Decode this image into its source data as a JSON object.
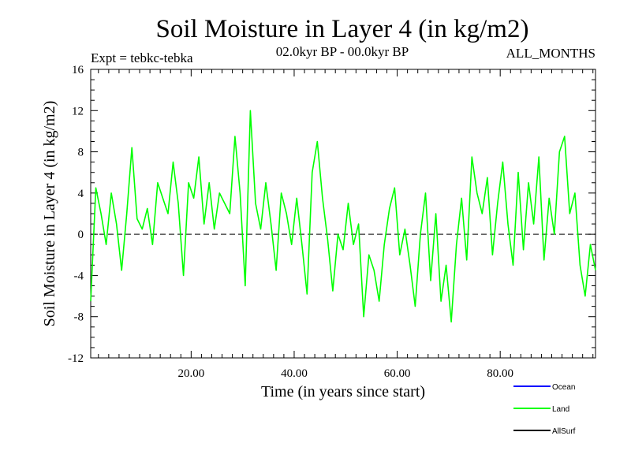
{
  "header": {
    "title": "Soil Moisture in Layer 4 (in kg/m2)",
    "expt": "Expt = tebkc-tebka",
    "period": "02.0kyr BP - 00.0kyr BP",
    "months": "ALL_MONTHS"
  },
  "chart_data": {
    "type": "line",
    "title": "Soil Moisture in Layer 4 (in kg/m2)",
    "xlabel": "Time (in years since start)",
    "ylabel": "Soil Moisture in Layer 4 (in kg/m2)",
    "xlim": [
      0.5,
      98.5
    ],
    "ylim": [
      -12,
      16
    ],
    "x_ticks": [
      20,
      40,
      60,
      80
    ],
    "x_tick_labels": [
      "20.00",
      "40.00",
      "60.00",
      "80.00"
    ],
    "y_ticks": [
      -12,
      -8,
      -4,
      0,
      4,
      8,
      12,
      16
    ],
    "y_tick_labels": [
      "-12",
      "-8",
      "-4",
      "0",
      "4",
      "8",
      "12",
      "16"
    ],
    "zero_line": true,
    "legend": [
      {
        "name": "Ocean",
        "color": "#0000ff"
      },
      {
        "name": "Land",
        "color": "#00ff00"
      },
      {
        "name": "AllSurf",
        "color": "#000000"
      }
    ],
    "series": [
      {
        "name": "Land",
        "color": "#00ff00",
        "x": [
          0.5,
          1.5,
          2.5,
          3.5,
          4.5,
          5.5,
          6.5,
          7.5,
          8.5,
          9.5,
          10.5,
          11.5,
          12.5,
          13.5,
          14.5,
          15.5,
          16.5,
          17.5,
          18.5,
          19.5,
          20.5,
          21.5,
          22.5,
          23.5,
          24.5,
          25.5,
          26.5,
          27.5,
          28.5,
          29.5,
          30.5,
          31.5,
          32.5,
          33.5,
          34.5,
          35.5,
          36.5,
          37.5,
          38.5,
          39.5,
          40.5,
          41.5,
          42.5,
          43.5,
          44.5,
          45.5,
          46.5,
          47.5,
          48.5,
          49.5,
          50.5,
          51.5,
          52.5,
          53.5,
          54.5,
          55.5,
          56.5,
          57.5,
          58.5,
          59.5,
          60.5,
          61.5,
          62.5,
          63.5,
          64.5,
          65.5,
          66.5,
          67.5,
          68.5,
          69.5,
          70.5,
          71.5,
          72.5,
          73.5,
          74.5,
          75.5,
          76.5,
          77.5,
          78.5,
          79.5,
          80.5,
          81.5,
          82.5,
          83.5,
          84.5,
          85.5,
          86.5,
          87.5,
          88.5,
          89.5,
          90.5,
          91.5,
          92.5,
          93.5,
          94.5,
          95.5,
          96.5,
          97.5,
          98.5
        ],
        "values": [
          -6.5,
          4.5,
          2.0,
          -1.0,
          4.0,
          1.0,
          -3.5,
          2.0,
          8.4,
          1.5,
          0.5,
          2.5,
          -1.0,
          5.0,
          3.5,
          2.0,
          7.0,
          3.0,
          -4.0,
          5.0,
          3.5,
          7.5,
          1.0,
          5.0,
          0.5,
          4.0,
          3.0,
          2.0,
          9.5,
          4.0,
          -5.0,
          12.0,
          3.0,
          0.5,
          5.0,
          1.0,
          -3.5,
          4.0,
          2.0,
          -1.0,
          3.5,
          -1.0,
          -5.8,
          6.0,
          9.0,
          3.5,
          -0.5,
          -5.5,
          0.0,
          -1.5,
          3.0,
          -1.0,
          1.0,
          -8.0,
          -2.0,
          -3.5,
          -6.5,
          -1.0,
          2.5,
          4.5,
          -2.0,
          0.5,
          -3.0,
          -7.0,
          0.0,
          4.0,
          -4.5,
          2.0,
          -6.5,
          -3.0,
          -8.5,
          -1.0,
          3.5,
          -2.5,
          7.5,
          4.0,
          2.0,
          5.5,
          -2.0,
          3.0,
          7.0,
          1.0,
          -3.0,
          6.0,
          -1.5,
          5.0,
          1.0,
          7.5,
          -2.5,
          3.5,
          0.0,
          8.0,
          9.5,
          2.0,
          4.0,
          -3.0,
          -6.0,
          -1.0,
          -3.5
        ]
      }
    ]
  }
}
